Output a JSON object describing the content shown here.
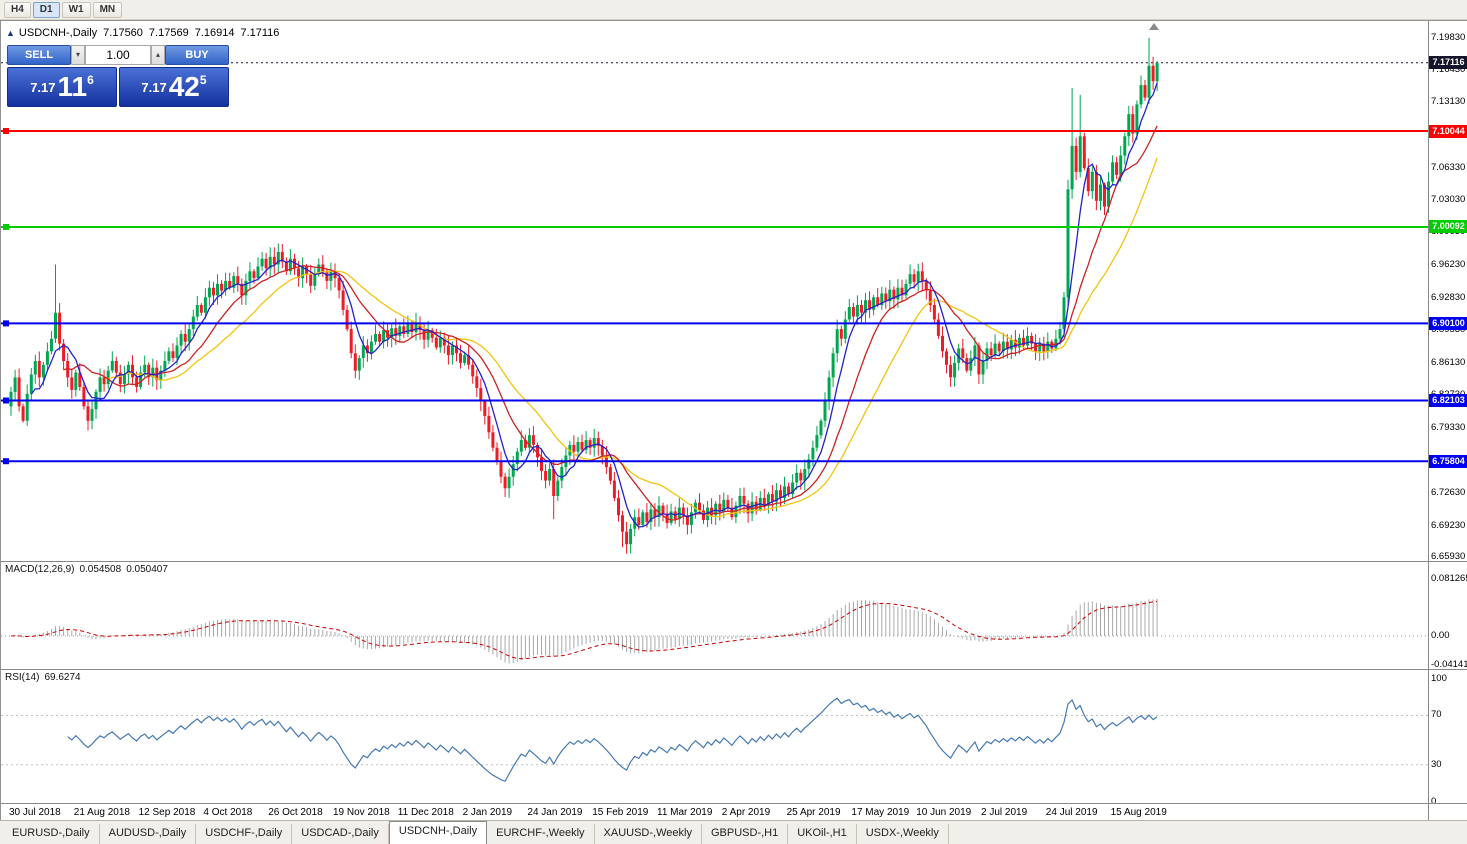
{
  "toolbar": {
    "periods": [
      "H4",
      "D1",
      "W1",
      "MN"
    ],
    "active_period": "D1"
  },
  "chart": {
    "title": "USDCNH-,Daily",
    "ohlc": {
      "open": "7.17560",
      "high": "7.17569",
      "low": "7.16914",
      "close": "7.17116"
    },
    "bid": 7.17116,
    "trade_panel": {
      "sell_label": "SELL",
      "buy_label": "BUY",
      "volume": "1.00",
      "sell_price": {
        "prefix": "7.17",
        "big": "11",
        "sup": "6"
      },
      "buy_price": {
        "prefix": "7.17",
        "big": "42",
        "sup": "5"
      }
    },
    "price_axis_labels": [
      "7.19830",
      "7.16430",
      "7.13130",
      "7.09830",
      "7.06330",
      "7.03030",
      "6.99630",
      "6.96230",
      "6.92830",
      "6.89530",
      "6.86130",
      "6.82730",
      "6.79330",
      "6.75930",
      "6.72630",
      "6.69230",
      "6.65930"
    ],
    "price_tags": [
      {
        "label": "7.17116",
        "price": 7.17116,
        "bg": "#14142a",
        "fg": "#ffffff",
        "kind": "bid"
      },
      {
        "label": "7.10044",
        "price": 7.10044,
        "bg": "#ff0000",
        "fg": "#ffffff",
        "kind": "hline"
      },
      {
        "label": "7.00092",
        "price": 7.00092,
        "bg": "#00cc00",
        "fg": "#ffffff",
        "kind": "hline"
      },
      {
        "label": "6.90100",
        "price": 6.901,
        "bg": "#0000ee",
        "fg": "#ffffff",
        "kind": "hline"
      },
      {
        "label": "6.82103",
        "price": 6.82103,
        "bg": "#0000ee",
        "fg": "#ffffff",
        "kind": "hline"
      },
      {
        "label": "6.75804",
        "price": 6.75804,
        "bg": "#0000ee",
        "fg": "#ffffff",
        "kind": "hline"
      }
    ],
    "hlines": [
      {
        "price": 7.10044,
        "color": "#ff0000"
      },
      {
        "price": 7.00092,
        "color": "#00cc00"
      },
      {
        "price": 6.901,
        "color": "#0000ee"
      },
      {
        "price": 6.82103,
        "color": "#0000ee"
      },
      {
        "price": 6.75804,
        "color": "#0000ee"
      }
    ],
    "date_labels": [
      "30 Jul 2018",
      "21 Aug 2018",
      "12 Sep 2018",
      "4 Oct 2018",
      "26 Oct 2018",
      "19 Nov 2018",
      "11 Dec 2018",
      "2 Jan 2019",
      "24 Jan 2019",
      "15 Feb 2019",
      "11 Mar 2019",
      "2 Apr 2019",
      "25 Apr 2019",
      "17 May 2019",
      "10 Jun 2019",
      "2 Jul 2019",
      "24 Jul 2019",
      "15 Aug 2019"
    ]
  },
  "macd": {
    "label": "MACD(12,26,9)",
    "value_main": "0.054508",
    "value_signal": "0.050407",
    "fast": 12,
    "slow": 26,
    "signal_period": 9,
    "axis": [
      "0.081265",
      "0.00",
      "-0.041413"
    ],
    "ylim": [
      -0.0485,
      0.1055
    ]
  },
  "rsi": {
    "label": "RSI(14)",
    "value": "69.6274",
    "period": 14,
    "axis": [
      "100",
      "70",
      "30",
      "0"
    ],
    "ylim": [
      -2,
      107
    ]
  },
  "tabs": [
    "EURUSD-,Daily",
    "AUDUSD-,Daily",
    "USDCHF-,Daily",
    "USDCAD-,Daily",
    "USDCNH-,Daily",
    "EURCHF-,Weekly",
    "XAUUSD-,Weekly",
    "GBPUSD-,H1",
    "UKOil-,H1",
    "USDX-,Weekly"
  ],
  "active_tab": "USDCNH-,Daily",
  "colors": {
    "candle_up": "#00a651",
    "candle_down": "#ee1c25",
    "ma_fast": "#2222cc",
    "ma_mid": "#cc2222",
    "ma_slow": "#f2c40f",
    "macd_hist": "#a8a8a8",
    "macd_signal": "#cc0000",
    "rsi_line": "#4579b2",
    "bid_tag": "#14142a"
  },
  "chart_data": {
    "type": "candlestick",
    "symbol": "USDCNH",
    "timeframe": "Daily",
    "ylim": [
      6.6546,
      7.2145
    ],
    "first_open": 6.815,
    "ma_periods": [
      6,
      14,
      25
    ],
    "closes": [
      6.83,
      6.845,
      6.815,
      6.8,
      6.828,
      6.848,
      6.862,
      6.845,
      6.858,
      6.872,
      6.885,
      6.912,
      6.88,
      6.862,
      6.845,
      6.832,
      6.85,
      6.835,
      6.815,
      6.8,
      6.812,
      6.83,
      6.845,
      6.838,
      6.852,
      6.862,
      6.85,
      6.838,
      6.848,
      6.858,
      6.845,
      6.835,
      6.85,
      6.858,
      6.845,
      6.855,
      6.842,
      6.852,
      6.862,
      6.872,
      6.865,
      6.878,
      6.89,
      6.882,
      6.895,
      6.908,
      6.92,
      6.912,
      6.928,
      6.938,
      6.93,
      6.942,
      6.935,
      6.945,
      6.938,
      6.95,
      6.942,
      6.93,
      6.945,
      6.955,
      6.948,
      6.96,
      6.968,
      6.958,
      6.97,
      6.962,
      6.975,
      6.965,
      6.955,
      6.968,
      6.958,
      6.948,
      6.96,
      6.952,
      6.94,
      6.952,
      6.962,
      6.955,
      6.945,
      6.955,
      6.948,
      6.935,
      6.915,
      6.895,
      6.87,
      6.852,
      6.865,
      6.878,
      6.87,
      6.882,
      6.89,
      6.882,
      6.894,
      6.886,
      6.896,
      6.888,
      6.898,
      6.89,
      6.9,
      6.892,
      6.902,
      6.894,
      6.884,
      6.894,
      6.886,
      6.876,
      6.886,
      6.878,
      6.868,
      6.878,
      6.87,
      6.86,
      6.868,
      6.858,
      6.846,
      6.834,
      6.82,
      6.805,
      6.788,
      6.772,
      6.758,
      6.742,
      6.73,
      6.742,
      6.755,
      6.768,
      6.78,
      6.772,
      6.785,
      6.775,
      6.762,
      6.748,
      6.738,
      6.75,
      6.722,
      6.738,
      6.752,
      6.764,
      6.775,
      6.768,
      6.778,
      6.77,
      6.78,
      6.772,
      6.782,
      6.774,
      6.764,
      6.752,
      6.738,
      6.72,
      6.702,
      6.685,
      6.672,
      6.688,
      6.7,
      6.692,
      6.705,
      6.695,
      6.708,
      6.7,
      6.712,
      6.704,
      6.694,
      6.706,
      6.698,
      6.71,
      6.702,
      6.692,
      6.705,
      6.715,
      6.707,
      6.697,
      6.71,
      6.702,
      6.714,
      6.706,
      6.718,
      6.71,
      6.7,
      6.712,
      6.722,
      6.714,
      6.704,
      6.716,
      6.708,
      6.72,
      6.712,
      6.724,
      6.716,
      6.728,
      6.72,
      6.732,
      6.724,
      6.736,
      6.746,
      6.738,
      6.75,
      6.76,
      6.772,
      6.785,
      6.8,
      6.82,
      6.845,
      6.87,
      6.895,
      6.885,
      6.905,
      6.918,
      6.908,
      6.92,
      6.912,
      6.925,
      6.915,
      6.928,
      6.92,
      6.932,
      6.924,
      6.936,
      6.926,
      6.938,
      6.93,
      6.942,
      6.952,
      6.944,
      6.955,
      6.945,
      6.935,
      6.92,
      6.905,
      6.888,
      6.872,
      6.858,
      6.845,
      6.86,
      6.875,
      6.865,
      6.852,
      6.865,
      6.878,
      6.848,
      6.862,
      6.875,
      6.868,
      6.88,
      6.872,
      6.882,
      6.874,
      6.884,
      6.876,
      6.886,
      6.878,
      6.888,
      6.88,
      6.872,
      6.88,
      6.872,
      6.882,
      6.875,
      6.885,
      6.895,
      6.928,
      7.04,
      7.085,
      7.058,
      7.095,
      7.062,
      7.038,
      7.058,
      7.028,
      7.045,
      7.022,
      7.048,
      7.068,
      7.055,
      7.075,
      7.095,
      7.118,
      7.098,
      7.128,
      7.148,
      7.135,
      7.168,
      7.152,
      7.171
    ],
    "wick_overrides": [
      {
        "i": 11,
        "high": 6.962
      },
      {
        "i": 19,
        "low": 6.79
      },
      {
        "i": 65,
        "high": 6.98
      },
      {
        "i": 134,
        "low": 6.698
      },
      {
        "i": 151,
        "low": 6.669
      },
      {
        "i": 262,
        "high": 7.145
      },
      {
        "i": 264,
        "high": 7.138
      },
      {
        "i": 281,
        "high": 7.197
      }
    ]
  }
}
